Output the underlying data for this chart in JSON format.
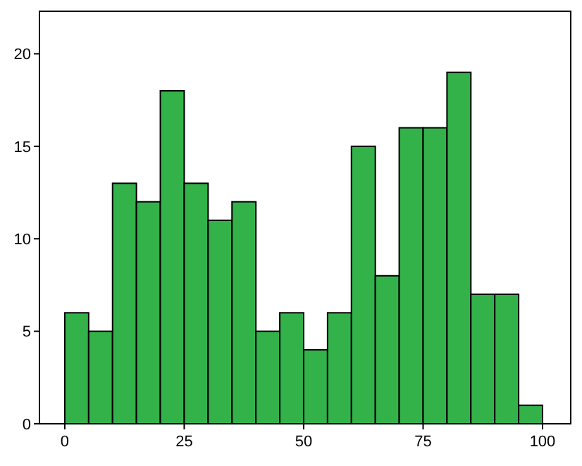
{
  "chart_data": {
    "type": "histogram",
    "bins": [
      0,
      5,
      10,
      15,
      20,
      25,
      30,
      35,
      40,
      45,
      50,
      55,
      60,
      65,
      70,
      75,
      80,
      85,
      90,
      95,
      100
    ],
    "values": [
      6,
      5,
      13,
      12,
      18,
      13,
      11,
      12,
      5,
      6,
      4,
      6,
      15,
      8,
      16,
      16,
      19,
      7,
      7,
      1
    ],
    "color": "#33b24a",
    "xlim": [
      -5.3,
      105.9
    ],
    "ylim": [
      0,
      22.3
    ],
    "xticks": [
      0,
      25,
      50,
      75,
      100
    ],
    "yticks": [
      0,
      5,
      10,
      15,
      20
    ],
    "grid": false
  }
}
